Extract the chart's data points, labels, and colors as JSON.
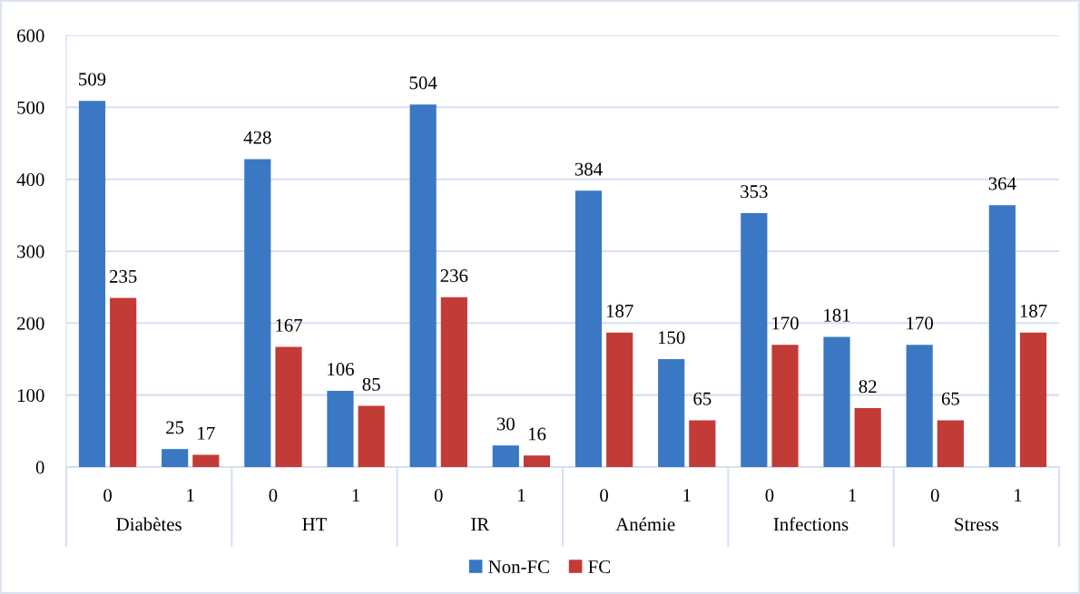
{
  "chart_data": {
    "type": "bar",
    "categories": [
      "0",
      "1",
      "0",
      "1",
      "0",
      "1",
      "0",
      "1",
      "0",
      "1",
      "0",
      "1"
    ],
    "annotations": [
      "Diabètes",
      "HT",
      "IR",
      "Anémie",
      "Infections",
      "Stress"
    ],
    "series": [
      {
        "name": "Non-FC",
        "color": "#3a78c4",
        "values": [
          509,
          25,
          428,
          106,
          504,
          30,
          384,
          150,
          353,
          181,
          170,
          364
        ]
      },
      {
        "name": "FC",
        "color": "#c23b36",
        "values": [
          235,
          17,
          167,
          85,
          236,
          16,
          187,
          65,
          170,
          82,
          65,
          187
        ]
      }
    ],
    "ylim": [
      0,
      600
    ],
    "yticks": [
      0,
      100,
      200,
      300,
      400,
      500,
      600
    ],
    "grid": "y",
    "legend": "bottom",
    "data_labels": true
  }
}
